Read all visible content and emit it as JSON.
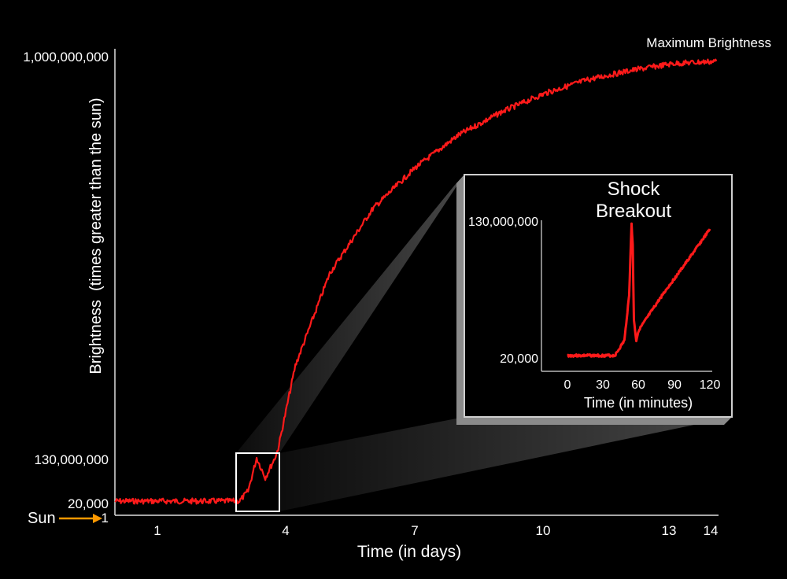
{
  "main_chart": {
    "type": "line",
    "xlabel": "Time (in days)",
    "ylabel": "Brightness  (times greater than the sun)",
    "x_ticks": [
      "1",
      "4",
      "7",
      "10",
      "13",
      "14"
    ],
    "y_ticks": [
      "1,000,000,000",
      "130,000,000",
      "20,000",
      "1"
    ],
    "annotation_top": "Maximum Brightness",
    "sun_label": "Sun",
    "line_color": "#ff1a1a",
    "arrow_color": "#ff9900"
  },
  "inset_chart": {
    "type": "line",
    "xlabel": "Time (in minutes)",
    "x_ticks": [
      "0",
      "30",
      "60",
      "90",
      "120"
    ],
    "y_ticks": [
      "130,000,000",
      "20,000"
    ],
    "annotation_line1": "Shock",
    "annotation_line2": "Breakout",
    "line_color": "#ff1a1a"
  },
  "chart_data": [
    {
      "type": "line",
      "xlabel": "Time (in days)",
      "ylabel": "Brightness  (times greater than the sun)",
      "y_tick_labels": [
        "1",
        "20,000",
        "130,000,000",
        "1,000,000,000"
      ],
      "x_tick_labels": [
        "1",
        "4",
        "7",
        "10",
        "13",
        "14"
      ],
      "xlim": [
        0,
        14
      ],
      "series": [
        {
          "x": [
            0,
            1,
            2,
            2.9,
            3.1,
            3.3,
            3.5,
            3.8,
            4.2,
            5,
            6,
            7,
            8,
            9,
            10,
            11,
            12,
            13,
            14
          ],
          "y": [
            20000,
            20000,
            20000,
            20000,
            30000000,
            130000000,
            70000000,
            150000000,
            330000000,
            530000000,
            670000000,
            760000000,
            830000000,
            880000000,
            920000000,
            950000000,
            970000000,
            985000000,
            990000000
          ]
        }
      ],
      "annotations": [
        "Maximum Brightness",
        "Sun"
      ]
    },
    {
      "type": "line",
      "xlabel": "Time (in minutes)",
      "x_tick_labels": [
        "0",
        "30",
        "60",
        "90",
        "120"
      ],
      "y_tick_labels": [
        "20,000",
        "130,000,000"
      ],
      "xlim": [
        0,
        120
      ],
      "series": [
        {
          "x": [
            0,
            20,
            40,
            48,
            52,
            54,
            55,
            56,
            58,
            60,
            80,
            100,
            120
          ],
          "y": [
            20000,
            20000,
            20000,
            15000000,
            60000000,
            130000000,
            110000000,
            35000000,
            15000000,
            25000000,
            60000000,
            92000000,
            125000000
          ]
        }
      ],
      "annotations": [
        "Shock Breakout"
      ]
    }
  ]
}
